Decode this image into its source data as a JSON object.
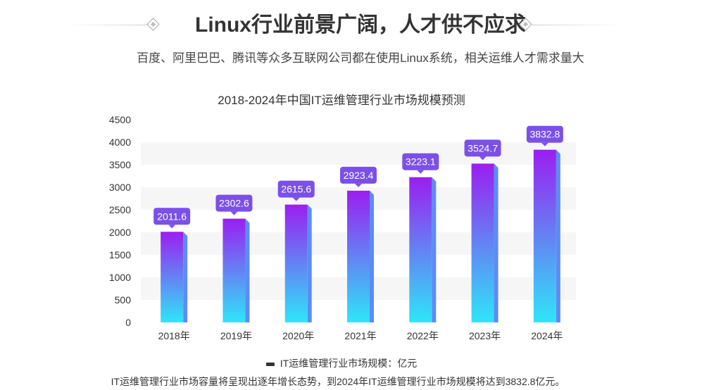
{
  "header": {
    "title": "Linux行业前景广阔，人才供不应求",
    "subtitle": "百度、阿里巴巴、腾讯等众多互联网公司都在使用Linux系统，相关运维人才需求量大"
  },
  "chart_data": {
    "type": "bar",
    "title": "2018-2024年中国IT运维管理行业市场规模预测",
    "categories": [
      "2018年",
      "2019年",
      "2020年",
      "2021年",
      "2022年",
      "2023年",
      "2024年"
    ],
    "series": [
      {
        "name": "IT运维管理行业市场规模：亿元",
        "values": [
          2011.6,
          2302.6,
          2615.6,
          2923.4,
          3223.1,
          3524.7,
          3832.8
        ]
      }
    ],
    "data_labels": [
      "2011.6",
      "2302.6",
      "2615.6",
      "2923.4",
      "3223.1",
      "3524.7",
      "3832.8"
    ],
    "yticks": [
      0,
      500,
      1000,
      1500,
      2000,
      2500,
      3000,
      3500,
      4000,
      4500
    ],
    "ylim": [
      0,
      4500
    ],
    "grid": "alternating horizontal bands",
    "legend": "bottom",
    "colors": {
      "bar_top": "#9b1ef0",
      "bar_bottom": "#2ee6f8",
      "bar_side": "#5b8cf5",
      "label_bg": "#7b50e8"
    }
  },
  "footnote": "IT运维管理行业市场容量将呈现出逐年增长态势，到2024年IT运维管理行业市场规模将达到3832.8亿元。"
}
